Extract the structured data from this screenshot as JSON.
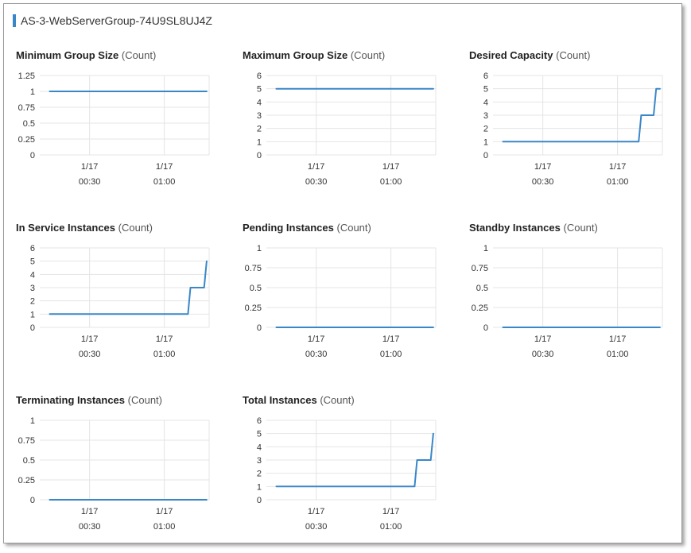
{
  "group": {
    "title": "AS-3-WebServerGroup-74U9SL8UJ4Z"
  },
  "colors": {
    "line": "#3a87c8",
    "grid": "#e4e4e4",
    "accent": "#3a87c8"
  },
  "x_ticks": [
    {
      "t": 30,
      "date": "1/17",
      "time": "00:30"
    },
    {
      "t": 60,
      "date": "1/17",
      "time": "01:00"
    }
  ],
  "chart_data": [
    {
      "type": "line",
      "title": "Minimum Group Size",
      "unit": "(Count)",
      "xlim": [
        10,
        78
      ],
      "ylim": [
        0,
        1.25
      ],
      "y_ticks": [
        "0",
        "0.25",
        "0.5",
        "0.75",
        "1",
        "1.25"
      ],
      "y_tick_values": [
        0,
        0.25,
        0.5,
        0.75,
        1,
        1.25
      ],
      "x": [
        14,
        77
      ],
      "y": [
        1,
        1
      ]
    },
    {
      "type": "line",
      "title": "Maximum Group Size",
      "unit": "(Count)",
      "xlim": [
        10,
        78
      ],
      "ylim": [
        0,
        6
      ],
      "y_ticks": [
        "0",
        "1",
        "2",
        "3",
        "4",
        "5",
        "6"
      ],
      "y_tick_values": [
        0,
        1,
        2,
        3,
        4,
        5,
        6
      ],
      "x": [
        14,
        77
      ],
      "y": [
        5,
        5
      ]
    },
    {
      "type": "line",
      "title": "Desired Capacity",
      "unit": "(Count)",
      "xlim": [
        10,
        78
      ],
      "ylim": [
        0,
        6
      ],
      "y_ticks": [
        "0",
        "1",
        "2",
        "3",
        "4",
        "5",
        "6"
      ],
      "y_tick_values": [
        0,
        1,
        2,
        3,
        4,
        5,
        6
      ],
      "x": [
        14,
        68.5,
        69.5,
        74.5,
        75.5,
        77
      ],
      "y": [
        1,
        1,
        3,
        3,
        5,
        5
      ]
    },
    {
      "type": "line",
      "title": "In Service Instances",
      "unit": "(Count)",
      "xlim": [
        10,
        78
      ],
      "ylim": [
        0,
        6
      ],
      "y_ticks": [
        "0",
        "1",
        "2",
        "3",
        "4",
        "5",
        "6"
      ],
      "y_tick_values": [
        0,
        1,
        2,
        3,
        4,
        5,
        6
      ],
      "x": [
        14,
        69.5,
        70.5,
        76,
        77
      ],
      "y": [
        1,
        1,
        3,
        3,
        5
      ]
    },
    {
      "type": "line",
      "title": "Pending Instances",
      "unit": "(Count)",
      "xlim": [
        10,
        78
      ],
      "ylim": [
        0,
        1
      ],
      "y_ticks": [
        "0",
        "0.25",
        "0.5",
        "0.75",
        "1"
      ],
      "y_tick_values": [
        0,
        0.25,
        0.5,
        0.75,
        1
      ],
      "x": [
        14,
        77
      ],
      "y": [
        0,
        0
      ]
    },
    {
      "type": "line",
      "title": "Standby Instances",
      "unit": "(Count)",
      "xlim": [
        10,
        78
      ],
      "ylim": [
        0,
        1
      ],
      "y_ticks": [
        "0",
        "0.25",
        "0.5",
        "0.75",
        "1"
      ],
      "y_tick_values": [
        0,
        0.25,
        0.5,
        0.75,
        1
      ],
      "x": [
        14,
        77
      ],
      "y": [
        0,
        0
      ]
    },
    {
      "type": "line",
      "title": "Terminating Instances",
      "unit": "(Count)",
      "xlim": [
        10,
        78
      ],
      "ylim": [
        0,
        1
      ],
      "y_ticks": [
        "0",
        "0.25",
        "0.5",
        "0.75",
        "1"
      ],
      "y_tick_values": [
        0,
        0.25,
        0.5,
        0.75,
        1
      ],
      "x": [
        14,
        77
      ],
      "y": [
        0,
        0
      ]
    },
    {
      "type": "line",
      "title": "Total Instances",
      "unit": "(Count)",
      "xlim": [
        10,
        78
      ],
      "ylim": [
        0,
        6
      ],
      "y_ticks": [
        "0",
        "1",
        "2",
        "3",
        "4",
        "5",
        "6"
      ],
      "y_tick_values": [
        0,
        1,
        2,
        3,
        4,
        5,
        6
      ],
      "x": [
        14,
        69.5,
        70.5,
        76,
        77
      ],
      "y": [
        1,
        1,
        3,
        3,
        5
      ]
    }
  ]
}
